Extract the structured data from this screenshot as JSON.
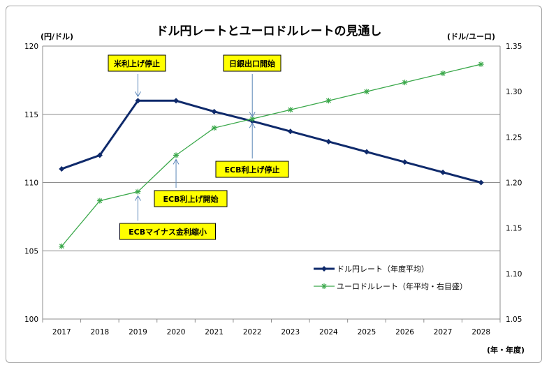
{
  "chart_data": {
    "type": "line",
    "title": "ドル円レートとユーロドルレートの見通し",
    "y_left_unit": "(円/ドル)",
    "y_right_unit": "(ドル/ユーロ)",
    "x_unit": "(年・年度)",
    "categories": [
      "2017",
      "2018",
      "2019",
      "2020",
      "2021",
      "2022",
      "2023",
      "2024",
      "2025",
      "2026",
      "2027",
      "2028"
    ],
    "y_left": {
      "min": 100,
      "max": 120,
      "ticks": [
        "100",
        "105",
        "110",
        "115",
        "120"
      ]
    },
    "y_right": {
      "min": 1.05,
      "max": 1.35,
      "ticks": [
        "1.05",
        "1.10",
        "1.15",
        "1.20",
        "1.25",
        "1.30",
        "1.35"
      ]
    },
    "grid": true,
    "series": [
      {
        "name": "ドル円レート（年度平均）",
        "axis": "left",
        "color": "#0f2a6b",
        "marker": "diamond",
        "values": [
          111,
          112,
          116,
          116,
          115.2,
          114.5,
          113.75,
          113,
          112.25,
          111.5,
          110.75,
          110
        ]
      },
      {
        "name": "ユーロドルレート（年平均・右目盛）",
        "axis": "right",
        "color": "#3aa84a",
        "marker": "asterisk",
        "values": [
          1.13,
          1.18,
          1.19,
          1.23,
          1.26,
          1.27,
          1.28,
          1.29,
          1.3,
          1.31,
          1.32,
          1.33
        ]
      }
    ],
    "legend_position": "right-middle",
    "annotations": [
      {
        "text": "米利上げ停止",
        "target_x": "2019",
        "target_series": 0
      },
      {
        "text": "日銀出口開始",
        "target_x": "2022",
        "target_series": 0
      },
      {
        "text": "ECB利上げ停止",
        "target_x": "2022",
        "target_series": 1
      },
      {
        "text": "ECB利上げ開始",
        "target_x": "2020",
        "target_series": 1
      },
      {
        "text": "ECBマイナス金利縮小",
        "target_x": "2019",
        "target_series": 1
      }
    ],
    "annotation_style": {
      "box_fill": "#ffff00",
      "box_stroke": "#000000",
      "arrow_color": "#5b86b8"
    }
  }
}
